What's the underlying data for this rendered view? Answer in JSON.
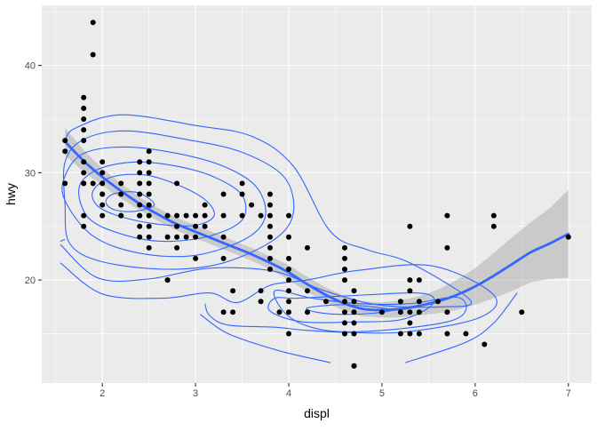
{
  "chart_data": {
    "type": "scatter",
    "title": "",
    "xlabel": "displ",
    "ylabel": "hwy",
    "xlim": [
      1.35,
      7.25
    ],
    "ylim": [
      10.4,
      45.6
    ],
    "x_ticks": [
      2,
      3,
      4,
      5,
      6,
      7
    ],
    "y_ticks": [
      20,
      30,
      40
    ],
    "x_tick_labels": [
      "2",
      "3",
      "4",
      "5",
      "6",
      "7"
    ],
    "y_tick_labels": [
      "20",
      "30",
      "40"
    ],
    "grid": true,
    "legend": "none",
    "colors": {
      "panel": "#ebebeb",
      "grid": "#ffffff",
      "points": "#000000",
      "smooth": "#3366ff",
      "band": "#999999",
      "contour": "#3366ff"
    },
    "points": [
      [
        1.6,
        33
      ],
      [
        1.6,
        32
      ],
      [
        1.6,
        29
      ],
      [
        1.8,
        29
      ],
      [
        1.8,
        29
      ],
      [
        1.8,
        26
      ],
      [
        1.8,
        25
      ],
      [
        1.8,
        31
      ],
      [
        1.8,
        33
      ],
      [
        1.8,
        34
      ],
      [
        1.8,
        35
      ],
      [
        1.8,
        36
      ],
      [
        1.8,
        37
      ],
      [
        1.8,
        30
      ],
      [
        1.9,
        44
      ],
      [
        1.9,
        41
      ],
      [
        1.9,
        29
      ],
      [
        2.0,
        31
      ],
      [
        2.0,
        30
      ],
      [
        2.0,
        29
      ],
      [
        2.0,
        28
      ],
      [
        2.0,
        27
      ],
      [
        2.0,
        26
      ],
      [
        2.0,
        28
      ],
      [
        2.0,
        29
      ],
      [
        2.2,
        26
      ],
      [
        2.2,
        27
      ],
      [
        2.2,
        28
      ],
      [
        2.2,
        29
      ],
      [
        2.2,
        26
      ],
      [
        2.4,
        30
      ],
      [
        2.4,
        29
      ],
      [
        2.4,
        28
      ],
      [
        2.4,
        27
      ],
      [
        2.4,
        26
      ],
      [
        2.4,
        25
      ],
      [
        2.4,
        24
      ],
      [
        2.4,
        31
      ],
      [
        2.4,
        26
      ],
      [
        2.5,
        32
      ],
      [
        2.5,
        31
      ],
      [
        2.5,
        30
      ],
      [
        2.5,
        29
      ],
      [
        2.5,
        28
      ],
      [
        2.5,
        27
      ],
      [
        2.5,
        26
      ],
      [
        2.5,
        25
      ],
      [
        2.5,
        24
      ],
      [
        2.5,
        23
      ],
      [
        2.7,
        20
      ],
      [
        2.7,
        20
      ],
      [
        2.7,
        24
      ],
      [
        2.7,
        26
      ],
      [
        2.8,
        29
      ],
      [
        2.8,
        26
      ],
      [
        2.8,
        25
      ],
      [
        2.8,
        24
      ],
      [
        2.8,
        23
      ],
      [
        2.9,
        26
      ],
      [
        2.9,
        24
      ],
      [
        3.0,
        26
      ],
      [
        3.0,
        25
      ],
      [
        3.0,
        24
      ],
      [
        3.0,
        22
      ],
      [
        3.1,
        27
      ],
      [
        3.1,
        26
      ],
      [
        3.1,
        25
      ],
      [
        3.3,
        28
      ],
      [
        3.3,
        26
      ],
      [
        3.3,
        24
      ],
      [
        3.3,
        22
      ],
      [
        3.3,
        17
      ],
      [
        3.4,
        19
      ],
      [
        3.4,
        17
      ],
      [
        3.5,
        29
      ],
      [
        3.5,
        28
      ],
      [
        3.5,
        26
      ],
      [
        3.6,
        27
      ],
      [
        3.7,
        19
      ],
      [
        3.7,
        18
      ],
      [
        3.7,
        26
      ],
      [
        3.8,
        28
      ],
      [
        3.8,
        27
      ],
      [
        3.8,
        26
      ],
      [
        3.8,
        25
      ],
      [
        3.8,
        24
      ],
      [
        3.8,
        23
      ],
      [
        3.8,
        22
      ],
      [
        3.8,
        21
      ],
      [
        3.9,
        17
      ],
      [
        4.0,
        26
      ],
      [
        4.0,
        24
      ],
      [
        4.0,
        22
      ],
      [
        4.0,
        21
      ],
      [
        4.0,
        20
      ],
      [
        4.0,
        19
      ],
      [
        4.0,
        18
      ],
      [
        4.0,
        17
      ],
      [
        4.0,
        15
      ],
      [
        4.2,
        23
      ],
      [
        4.2,
        19
      ],
      [
        4.2,
        17
      ],
      [
        4.4,
        18
      ],
      [
        4.6,
        23
      ],
      [
        4.6,
        22
      ],
      [
        4.6,
        21
      ],
      [
        4.6,
        20
      ],
      [
        4.6,
        18
      ],
      [
        4.6,
        17
      ],
      [
        4.6,
        16
      ],
      [
        4.6,
        15
      ],
      [
        4.7,
        19
      ],
      [
        4.7,
        18
      ],
      [
        4.7,
        17
      ],
      [
        4.7,
        16
      ],
      [
        4.7,
        15
      ],
      [
        4.7,
        12
      ],
      [
        4.7,
        12
      ],
      [
        5.0,
        17
      ],
      [
        5.2,
        18
      ],
      [
        5.2,
        17
      ],
      [
        5.2,
        15
      ],
      [
        5.3,
        25
      ],
      [
        5.3,
        20
      ],
      [
        5.3,
        19
      ],
      [
        5.3,
        17
      ],
      [
        5.3,
        16
      ],
      [
        5.3,
        15
      ],
      [
        5.4,
        20
      ],
      [
        5.4,
        18
      ],
      [
        5.4,
        17
      ],
      [
        5.4,
        15
      ],
      [
        5.6,
        18
      ],
      [
        5.7,
        26
      ],
      [
        5.7,
        23
      ],
      [
        5.7,
        17
      ],
      [
        5.7,
        15
      ],
      [
        5.9,
        15
      ],
      [
        6.1,
        14
      ],
      [
        6.2,
        26
      ],
      [
        6.2,
        25
      ],
      [
        6.5,
        17
      ],
      [
        7.0,
        24
      ]
    ],
    "smooth": [
      [
        1.6,
        32.9
      ],
      [
        1.8,
        31.1
      ],
      [
        2.0,
        29.6
      ],
      [
        2.2,
        28.3
      ],
      [
        2.4,
        27.1
      ],
      [
        2.6,
        26.1
      ],
      [
        2.8,
        25.2
      ],
      [
        3.0,
        24.5
      ],
      [
        3.2,
        23.8
      ],
      [
        3.4,
        23.1
      ],
      [
        3.6,
        22.4
      ],
      [
        3.8,
        21.6
      ],
      [
        4.0,
        20.7
      ],
      [
        4.2,
        19.6
      ],
      [
        4.4,
        18.6
      ],
      [
        4.6,
        17.8
      ],
      [
        4.8,
        17.3
      ],
      [
        5.0,
        17.2
      ],
      [
        5.2,
        17.3
      ],
      [
        5.4,
        17.6
      ],
      [
        5.6,
        18.0
      ],
      [
        5.8,
        18.6
      ],
      [
        6.0,
        19.4
      ],
      [
        6.2,
        20.4
      ],
      [
        6.4,
        21.5
      ],
      [
        6.6,
        22.6
      ],
      [
        6.8,
        23.4
      ],
      [
        7.0,
        24.3
      ]
    ],
    "band_upper": [
      [
        1.6,
        34.2
      ],
      [
        1.8,
        32.1
      ],
      [
        2.0,
        30.4
      ],
      [
        2.2,
        29.0
      ],
      [
        2.4,
        27.7
      ],
      [
        2.6,
        26.7
      ],
      [
        2.8,
        25.8
      ],
      [
        3.0,
        25.1
      ],
      [
        3.2,
        24.4
      ],
      [
        3.4,
        23.7
      ],
      [
        3.6,
        23.0
      ],
      [
        3.8,
        22.2
      ],
      [
        4.0,
        21.4
      ],
      [
        4.2,
        20.3
      ],
      [
        4.4,
        19.3
      ],
      [
        4.6,
        18.5
      ],
      [
        4.8,
        18.0
      ],
      [
        5.0,
        17.9
      ],
      [
        5.2,
        18.1
      ],
      [
        5.4,
        18.5
      ],
      [
        5.6,
        19.1
      ],
      [
        5.8,
        20.0
      ],
      [
        6.0,
        21.1
      ],
      [
        6.2,
        22.5
      ],
      [
        6.4,
        24.0
      ],
      [
        6.6,
        25.4
      ],
      [
        6.8,
        26.7
      ],
      [
        7.0,
        28.4
      ]
    ],
    "band_lower": [
      [
        1.6,
        31.6
      ],
      [
        1.8,
        30.1
      ],
      [
        2.0,
        28.8
      ],
      [
        2.2,
        27.6
      ],
      [
        2.4,
        26.5
      ],
      [
        2.6,
        25.5
      ],
      [
        2.8,
        24.6
      ],
      [
        3.0,
        23.9
      ],
      [
        3.2,
        23.2
      ],
      [
        3.4,
        22.5
      ],
      [
        3.6,
        21.8
      ],
      [
        3.8,
        21.0
      ],
      [
        4.0,
        20.0
      ],
      [
        4.2,
        18.9
      ],
      [
        4.4,
        17.9
      ],
      [
        4.6,
        17.1
      ],
      [
        4.8,
        16.6
      ],
      [
        5.0,
        16.5
      ],
      [
        5.2,
        16.5
      ],
      [
        5.4,
        16.7
      ],
      [
        5.6,
        16.9
      ],
      [
        5.8,
        17.2
      ],
      [
        6.0,
        17.7
      ],
      [
        6.2,
        18.3
      ],
      [
        6.4,
        19.0
      ],
      [
        6.6,
        19.8
      ],
      [
        6.8,
        20.1
      ],
      [
        7.0,
        20.2
      ]
    ],
    "contours": [
      [
        [
          2.05,
          27.6
        ],
        [
          2.15,
          28.1
        ],
        [
          2.35,
          28.2
        ],
        [
          2.5,
          27.6
        ],
        [
          2.55,
          26.9
        ],
        [
          2.35,
          26.4
        ],
        [
          2.15,
          26.5
        ],
        [
          2.05,
          27.0
        ],
        [
          2.05,
          27.6
        ]
      ],
      [
        [
          1.9,
          28.3
        ],
        [
          2.1,
          29.6
        ],
        [
          2.45,
          29.8
        ],
        [
          2.8,
          28.9
        ],
        [
          3.1,
          27.5
        ],
        [
          3.2,
          26.0
        ],
        [
          3.0,
          25.1
        ],
        [
          2.6,
          25.2
        ],
        [
          2.2,
          25.9
        ],
        [
          1.95,
          26.9
        ],
        [
          1.9,
          28.3
        ]
      ],
      [
        [
          1.75,
          28.6
        ],
        [
          1.95,
          30.3
        ],
        [
          2.35,
          31.0
        ],
        [
          2.8,
          30.6
        ],
        [
          3.2,
          29.6
        ],
        [
          3.5,
          27.9
        ],
        [
          3.5,
          25.6
        ],
        [
          3.15,
          24.1
        ],
        [
          2.65,
          23.6
        ],
        [
          2.2,
          24.3
        ],
        [
          1.85,
          25.8
        ],
        [
          1.75,
          28.6
        ]
      ],
      [
        [
          1.6,
          29.7
        ],
        [
          1.8,
          31.8
        ],
        [
          2.25,
          32.4
        ],
        [
          2.8,
          31.8
        ],
        [
          3.3,
          30.6
        ],
        [
          3.65,
          28.7
        ],
        [
          3.75,
          26.0
        ],
        [
          3.55,
          23.9
        ],
        [
          3.0,
          22.3
        ],
        [
          2.4,
          22.5
        ],
        [
          1.9,
          24.1
        ],
        [
          1.6,
          27.4
        ],
        [
          1.6,
          29.7
        ]
      ],
      [
        [
          1.6,
          31.0
        ],
        [
          1.8,
          33.1
        ],
        [
          2.25,
          33.9
        ],
        [
          2.9,
          33.1
        ],
        [
          3.5,
          31.9
        ],
        [
          3.95,
          29.6
        ],
        [
          4.05,
          26.3
        ],
        [
          3.85,
          23.8
        ],
        [
          3.3,
          21.6
        ],
        [
          2.7,
          21.0
        ],
        [
          2.0,
          21.7
        ],
        [
          1.65,
          23.4
        ],
        [
          1.6,
          27.0
        ],
        [
          1.6,
          31.0
        ]
      ],
      [
        [
          1.6,
          32.9
        ],
        [
          1.7,
          34.1
        ],
        [
          2.2,
          35.4
        ],
        [
          3.0,
          34.4
        ],
        [
          3.6,
          33.4
        ],
        [
          4.05,
          30.6
        ],
        [
          4.45,
          24.5
        ],
        [
          4.85,
          22.8
        ],
        [
          5.3,
          21.6
        ],
        [
          5.95,
          18.1
        ],
        [
          5.65,
          17.5
        ],
        [
          4.95,
          17.7
        ],
        [
          4.35,
          19.1
        ],
        [
          3.85,
          20.8
        ],
        [
          3.15,
          21.1
        ],
        [
          2.5,
          20.1
        ],
        [
          1.95,
          20.2
        ],
        [
          1.55,
          23.3
        ]
      ],
      [
        [
          1.55,
          21.6
        ],
        [
          2.0,
          18.7
        ],
        [
          2.65,
          18.3
        ],
        [
          3.15,
          18.8
        ],
        [
          3.45,
          17.9
        ],
        [
          3.8,
          19.5
        ],
        [
          4.2,
          20.0
        ],
        [
          4.75,
          20.9
        ],
        [
          5.55,
          21.3
        ],
        [
          6.2,
          18.6
        ],
        [
          6.05,
          16.5
        ],
        [
          5.3,
          15.2
        ],
        [
          4.7,
          15.1
        ],
        [
          4.2,
          15.3
        ],
        [
          3.85,
          15.6
        ],
        [
          3.35,
          15.8
        ],
        [
          3.15,
          16.7
        ],
        [
          3.1,
          17.8
        ]
      ],
      [
        [
          1.55,
          23.6
        ],
        [
          1.6,
          23.8
        ]
      ],
      [
        [
          3.05,
          16.8
        ],
        [
          3.35,
          15.0
        ],
        [
          3.9,
          13.4
        ],
        [
          4.45,
          12.3
        ]
      ],
      [
        [
          5.25,
          12.3
        ],
        [
          5.9,
          14.2
        ],
        [
          6.2,
          16.0
        ],
        [
          6.45,
          18.8
        ]
      ],
      [
        [
          3.85,
          19.0
        ],
        [
          4.25,
          18.3
        ],
        [
          4.75,
          17.8
        ],
        [
          5.3,
          17.8
        ],
        [
          5.8,
          18.4
        ],
        [
          5.9,
          17.2
        ],
        [
          5.7,
          16.1
        ],
        [
          5.0,
          15.3
        ],
        [
          4.4,
          15.3
        ],
        [
          4.0,
          16.6
        ],
        [
          3.85,
          19.0
        ]
      ],
      [
        [
          4.55,
          17.7
        ],
        [
          4.9,
          17.5
        ],
        [
          5.1,
          17.2
        ],
        [
          4.9,
          16.9
        ],
        [
          4.55,
          16.8
        ],
        [
          4.3,
          17.0
        ],
        [
          4.2,
          17.4
        ],
        [
          4.55,
          17.7
        ]
      ],
      [
        [
          3.85,
          18.3
        ],
        [
          4.1,
          18.3
        ],
        [
          4.8,
          18.6
        ],
        [
          5.35,
          18.8
        ],
        [
          5.55,
          18.4
        ],
        [
          5.5,
          17.4
        ],
        [
          5.2,
          16.3
        ],
        [
          4.75,
          16.1
        ],
        [
          4.15,
          16.1
        ],
        [
          3.8,
          17.1
        ],
        [
          3.85,
          18.3
        ]
      ]
    ]
  }
}
